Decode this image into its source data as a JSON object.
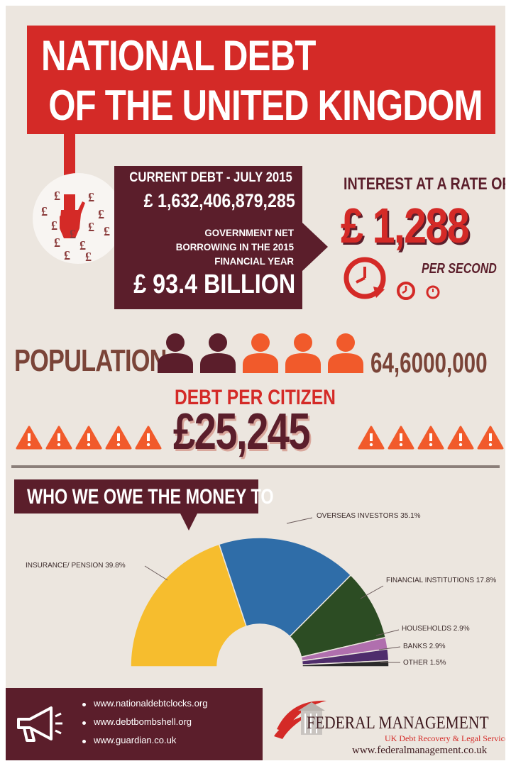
{
  "title": {
    "line1": "NATIONAL DEBT",
    "line2": "OF THE UNITED KINGDOM"
  },
  "debt": {
    "current_label": "CURRENT DEBT - JULY 2015",
    "current_value": "£ 1,632,406,879,285",
    "borrowing_line1": "GOVERNMENT NET",
    "borrowing_line2": "BORROWING IN THE 2015",
    "borrowing_line3": "FINANCIAL YEAR",
    "borrowing_value": "£ 93.4 BILLION"
  },
  "interest": {
    "label": "INTEREST AT A RATE OF",
    "amount": "£ 1,288",
    "unit": "PER SECOND"
  },
  "population": {
    "label": "POPULATION",
    "value": "64,6000,000"
  },
  "per_citizen": {
    "label": "DEBT PER CITIZEN",
    "value": "£25,245"
  },
  "who_we_owe": {
    "heading": "WHO WE OWE THE MONEY TO",
    "segments": [
      {
        "label": "INSURANCE/ PENSION 39.8%",
        "name": "INSURANCE/ PENSION",
        "value": 39.8,
        "color": "#f6bd2e"
      },
      {
        "label": "OVERSEAS INVESTORS 35.1%",
        "name": "OVERSEAS INVESTORS",
        "value": 35.1,
        "color": "#2f6da8"
      },
      {
        "label": "FINANCIAL INSTITUTIONS 17.8%",
        "name": "FINANCIAL INSTITUTIONS",
        "value": 17.8,
        "color": "#2c4c23"
      },
      {
        "label": "HOUSEHOLDS 2.9%",
        "name": "HOUSEHOLDS",
        "value": 2.9,
        "color": "#b06fae"
      },
      {
        "label": "BANKS 2.9%",
        "name": "BANKS",
        "value": 2.9,
        "color": "#4f2d6c"
      },
      {
        "label": "OTHER 1.5%",
        "name": "OTHER",
        "value": 1.5,
        "color": "#2a2a2a"
      }
    ]
  },
  "chart_data": {
    "type": "pie",
    "title": "WHO WE OWE THE MONEY TO",
    "categories": [
      "INSURANCE/ PENSION",
      "OVERSEAS INVESTORS",
      "FINANCIAL INSTITUTIONS",
      "HOUSEHOLDS",
      "BANKS",
      "OTHER"
    ],
    "values": [
      39.8,
      35.1,
      17.8,
      2.9,
      2.9,
      1.5
    ],
    "shape": "semicircle-donut"
  },
  "sources": [
    "www.nationaldebtclocks.org",
    "www.debtbombshell.org",
    "www.guardian.co.uk"
  ],
  "brand": {
    "name": "FEDERAL MANAGEMENT",
    "tagline": "UK Debt Recovery & Legal Services",
    "url": "www.federalmanagement.co.uk"
  },
  "colors": {
    "red": "#d42a27",
    "maroon": "#5b1e2b",
    "background": "#ece6df",
    "orange": "#f15a2b"
  },
  "icons": [
    "pound-coins-icon",
    "hand-icon",
    "clock-icon",
    "person-icon",
    "warning-icon",
    "megaphone-icon",
    "logo-icon"
  ]
}
